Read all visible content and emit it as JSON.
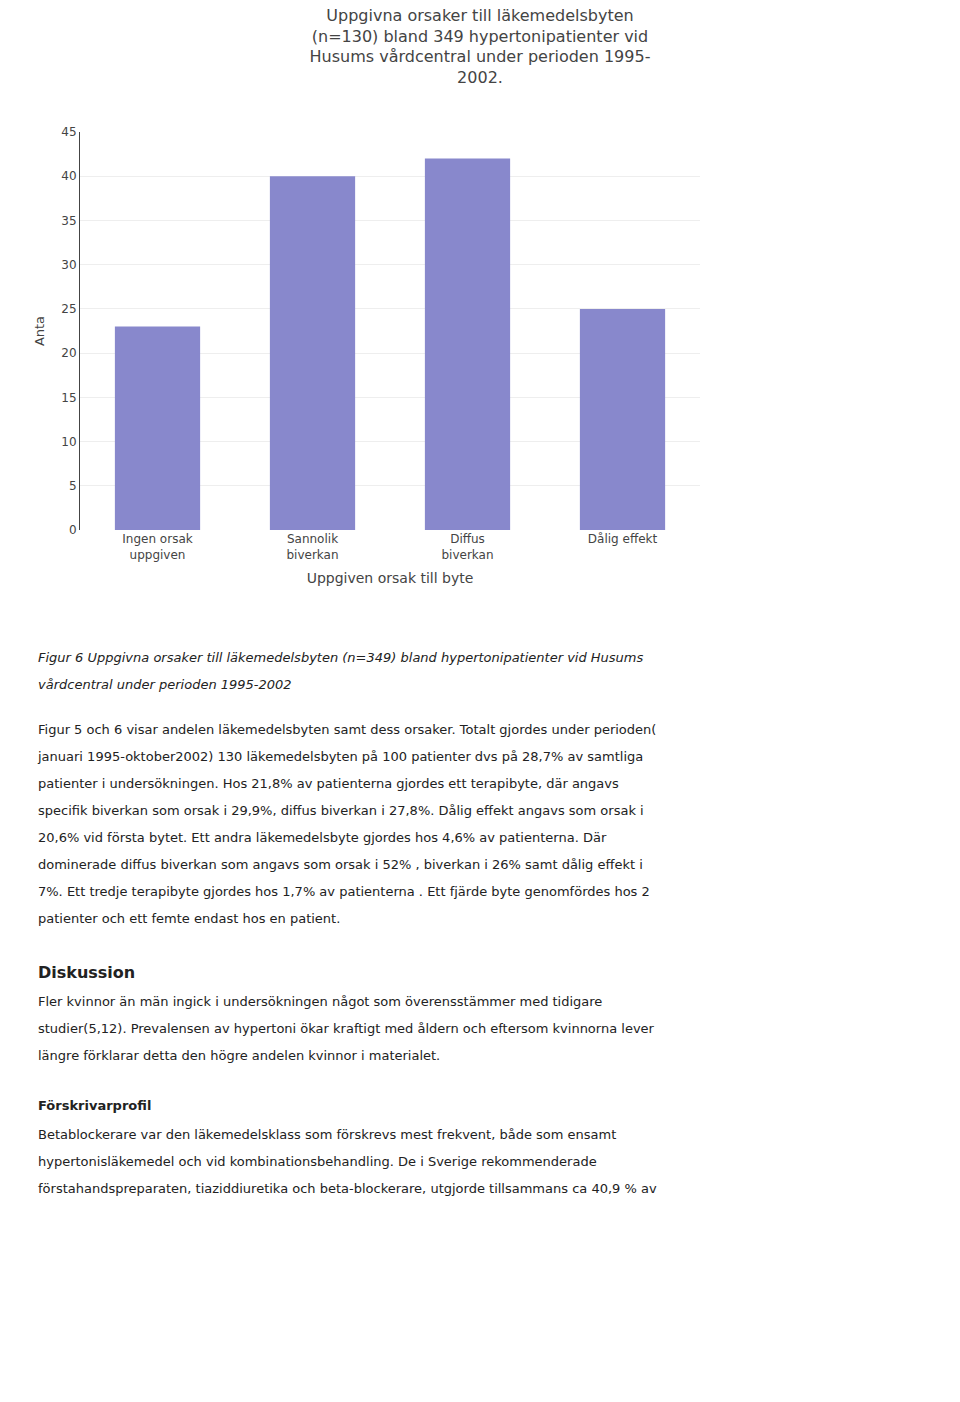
{
  "chart_data": {
    "type": "bar",
    "title": "Uppgivna orsaker till läkemedelsbyten\n(n=130) bland 349 hypertonipatienter vid\nHusums vårdcentral under perioden 1995-\n2002.",
    "categories": [
      "Ingen orsak\nuppgiven",
      "Sannolik\nbiverkan",
      "Diffus\nbiverkan",
      "Dålig effekt"
    ],
    "values": [
      23,
      40,
      42,
      25
    ],
    "color": "#8888cc",
    "ylabel": "Anta",
    "xlabel": "Uppgiven orsak till byte",
    "ylim": [
      0,
      45
    ],
    "yticks": [
      0,
      5,
      10,
      15,
      20,
      25,
      30,
      35,
      40,
      45
    ],
    "grid": true,
    "annotations": [
      {
        "lines": [
          "Figur 6 Uppgivna orsaker till läkemedelsbyten (n=349) bland hypertonipatienter vid Husums",
          "vårdcentral under perioden 1995-2002"
        ]
      },
      {
        "lines": [
          "Figur 5 och 6 visar andelen läkemedelsbyten samt dess orsaker. Totalt gjordes under perioden(",
          "januari 1995-oktober2002) 130 läkemedelsbyten på 100 patienter dvs på 28,7% av samtliga",
          "patienter i undersökningen. Hos 21,8% av patienterna gjordes ett terapibyte, där angavs",
          "specifik biverkan som orsak i 29,9%, diffus biverkan i 27,8%. Dålig effekt angavs som orsak i",
          "20,6% vid första bytet. Ett andra läkemedelsbyte gjordes hos 4,6% av patienterna. Där",
          "dominerade diffus biverkan som angavs som orsak i 52% , biverkan i 26% samt dålig effekt i",
          "7%. Ett tredje terapibyte gjordes hos 1,7% av patienterna . Ett fjärde byte genomfördes hos 2",
          "patienter och ett femte endast hos en patient."
        ]
      },
      {
        "heading": "Diskussion",
        "lines": [
          "Fler kvinnor än män ingick i undersökningen något som överensstämmer med tidigare",
          "studier(5,12). Prevalensen av hypertoni ökar kraftigt med åldern och eftersom kvinnorna lever",
          "längre förklarar detta den högre andelen kvinnor i materialet."
        ]
      },
      {
        "heading": "Förskrivarprofil",
        "lines": [
          "Betablockerare var den läkemedelsklass som förskrevs mest frekvent, både som ensamt",
          "hypertonisläkemedel och vid kombinationsbehandling. De i Sverige rekommenderade",
          "förstahandspreparaten, tiaziddiuretika och beta-blockerare, utgjorde  tillsammans ca 40,9 % av"
        ]
      }
    ]
  }
}
